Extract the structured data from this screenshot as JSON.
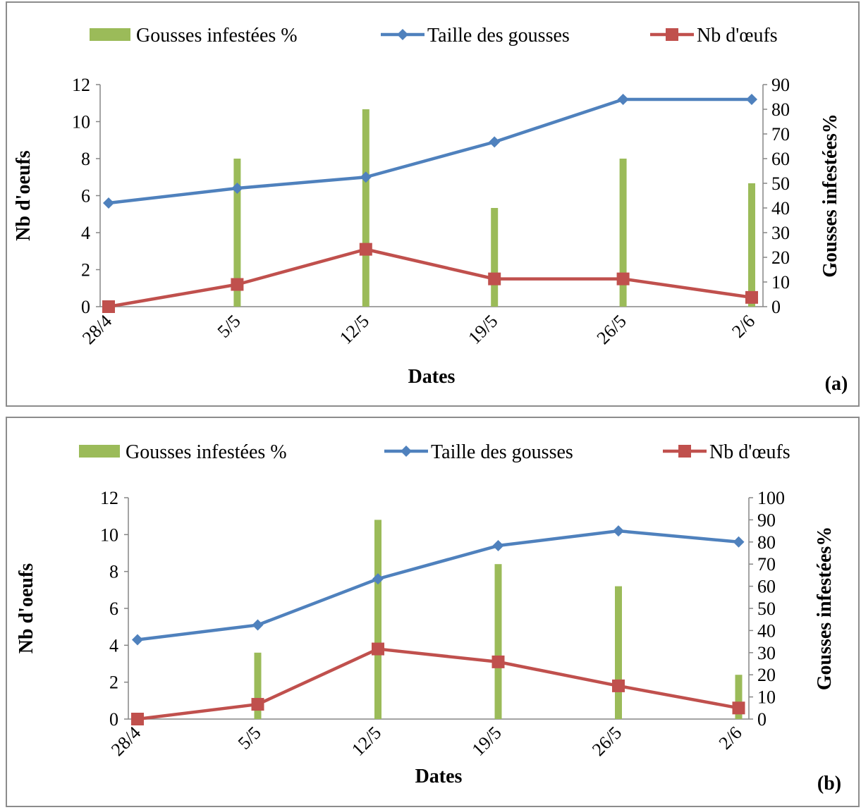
{
  "chart_data": [
    {
      "type": "bar+line",
      "panel_label": "(a)",
      "xlabel": "Dates",
      "ylabel_left": "Nb d'oeufs",
      "ylabel_right": "Gousses infestées%",
      "categories": [
        "28/4",
        "5/5",
        "12/5",
        "19/5",
        "26/5",
        "2/6"
      ],
      "ylim_left": [
        0,
        12
      ],
      "yticks_left": [
        "0",
        "2",
        "4",
        "6",
        "8",
        "10",
        "12"
      ],
      "ylim_right": [
        0,
        90
      ],
      "yticks_right": [
        "0",
        "10",
        "20",
        "30",
        "40",
        "50",
        "60",
        "70",
        "80",
        "90"
      ],
      "legend_position": "top",
      "series": [
        {
          "name": "Gousses infestées %",
          "type": "bar",
          "axis": "right",
          "color": "#9BBB59",
          "values": [
            0,
            60,
            80,
            40,
            60,
            50
          ]
        },
        {
          "name": "Taille des gousses",
          "type": "line",
          "axis": "left",
          "marker": "diamond",
          "color": "#4F81BD",
          "values": [
            5.6,
            6.4,
            7.0,
            8.9,
            11.2,
            11.2
          ]
        },
        {
          "name": "Nb d'œufs",
          "type": "line",
          "axis": "left",
          "marker": "square",
          "color": "#C0504D",
          "values": [
            0,
            1.2,
            3.1,
            1.5,
            1.5,
            0.5
          ]
        }
      ]
    },
    {
      "type": "bar+line",
      "panel_label": "(b)",
      "xlabel": "Dates",
      "ylabel_left": "Nb d'oeufs",
      "ylabel_right": "Gousses infestées%",
      "categories": [
        "28/4",
        "5/5",
        "12/5",
        "19/5",
        "26/5",
        "2/6"
      ],
      "ylim_left": [
        0,
        12
      ],
      "yticks_left": [
        "0",
        "2",
        "4",
        "6",
        "8",
        "10",
        "12"
      ],
      "ylim_right": [
        0,
        100
      ],
      "yticks_right": [
        "0",
        "10",
        "20",
        "30",
        "40",
        "50",
        "60",
        "70",
        "80",
        "90",
        "100"
      ],
      "legend_position": "top",
      "series": [
        {
          "name": "Gousses infestées %",
          "type": "bar",
          "axis": "right",
          "color": "#9BBB59",
          "values": [
            0,
            30,
            90,
            70,
            60,
            20
          ]
        },
        {
          "name": "Taille des gousses",
          "type": "line",
          "axis": "left",
          "marker": "diamond",
          "color": "#4F81BD",
          "values": [
            4.3,
            5.1,
            7.6,
            9.4,
            10.2,
            9.6
          ]
        },
        {
          "name": "Nb d'œufs",
          "type": "line",
          "axis": "left",
          "marker": "square",
          "color": "#C0504D",
          "values": [
            0,
            0.8,
            3.8,
            3.1,
            1.8,
            0.6
          ]
        }
      ]
    }
  ]
}
